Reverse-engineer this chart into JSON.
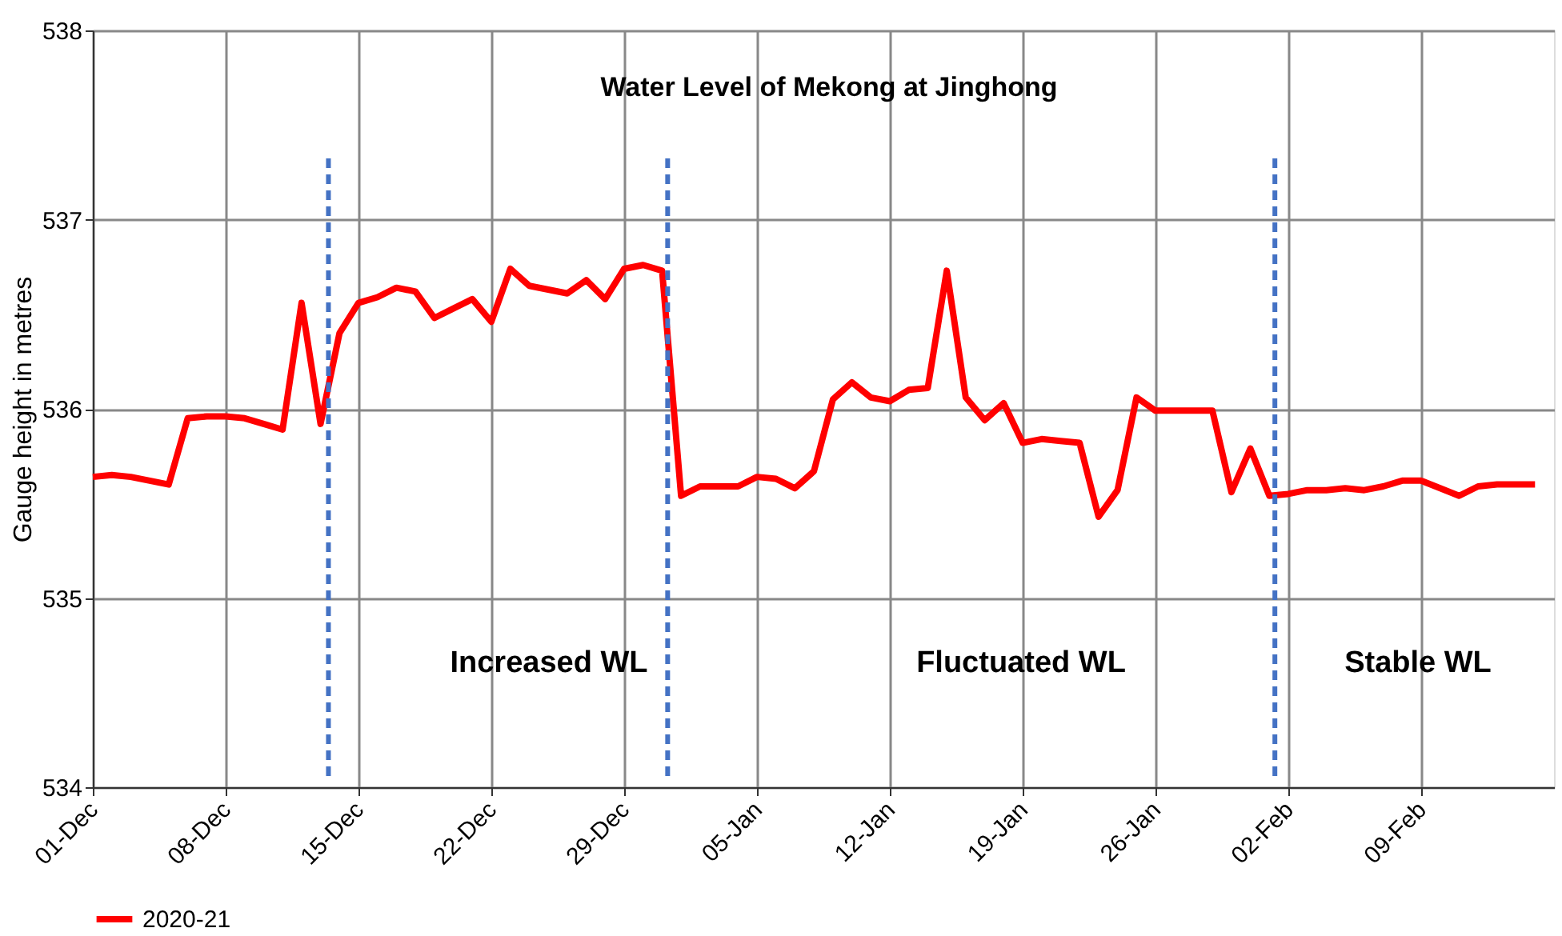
{
  "chart_data": {
    "type": "line",
    "title": "Water Level of Mekong at Jinghong",
    "ylabel": "Gauge height in metres",
    "x": [
      "2020-12-01",
      "2020-12-02",
      "2020-12-03",
      "2020-12-04",
      "2020-12-05",
      "2020-12-06",
      "2020-12-07",
      "2020-12-08",
      "2020-12-09",
      "2020-12-10",
      "2020-12-11",
      "2020-12-12",
      "2020-12-13",
      "2020-12-14",
      "2020-12-15",
      "2020-12-16",
      "2020-12-17",
      "2020-12-18",
      "2020-12-19",
      "2020-12-20",
      "2020-12-21",
      "2020-12-22",
      "2020-12-23",
      "2020-12-24",
      "2020-12-25",
      "2020-12-26",
      "2020-12-27",
      "2020-12-28",
      "2020-12-29",
      "2020-12-30",
      "2020-12-31",
      "2021-01-01",
      "2021-01-02",
      "2021-01-03",
      "2021-01-04",
      "2021-01-05",
      "2021-01-06",
      "2021-01-07",
      "2021-01-08",
      "2021-01-09",
      "2021-01-10",
      "2021-01-11",
      "2021-01-12",
      "2021-01-13",
      "2021-01-14",
      "2021-01-15",
      "2021-01-16",
      "2021-01-17",
      "2021-01-18",
      "2021-01-19",
      "2021-01-20",
      "2021-01-21",
      "2021-01-22",
      "2021-01-23",
      "2021-01-24",
      "2021-01-25",
      "2021-01-26",
      "2021-01-27",
      "2021-01-28",
      "2021-01-29",
      "2021-01-30",
      "2021-01-31",
      "2021-02-01",
      "2021-02-02",
      "2021-02-03",
      "2021-02-04",
      "2021-02-05",
      "2021-02-06",
      "2021-02-07",
      "2021-02-08",
      "2021-02-09",
      "2021-02-10",
      "2021-02-11",
      "2021-02-12",
      "2021-02-13",
      "2021-02-14",
      "2021-02-15"
    ],
    "series": [
      {
        "name": "2020-21",
        "color": "#ff0000",
        "values": [
          535.64,
          535.65,
          535.64,
          535.62,
          535.6,
          535.95,
          535.96,
          535.96,
          535.95,
          535.92,
          535.89,
          536.56,
          535.92,
          536.4,
          536.56,
          536.59,
          536.64,
          536.62,
          536.48,
          536.53,
          536.58,
          536.46,
          536.74,
          536.65,
          536.63,
          536.61,
          536.68,
          536.58,
          536.74,
          536.76,
          536.73,
          535.54,
          535.59,
          535.59,
          535.59,
          535.64,
          535.63,
          535.58,
          535.67,
          536.05,
          536.14,
          536.06,
          536.04,
          536.1,
          536.11,
          536.73,
          536.06,
          535.94,
          536.03,
          535.82,
          535.84,
          535.83,
          535.82,
          535.43,
          535.57,
          536.06,
          535.99,
          535.99,
          535.99,
          535.99,
          535.56,
          535.79,
          535.54,
          535.55,
          535.57,
          535.57,
          535.58,
          535.57,
          535.59,
          535.62,
          535.62,
          535.58,
          535.54,
          535.59,
          535.6,
          535.6,
          535.6
        ]
      }
    ],
    "xlim": [
      "2020-12-01",
      "2021-02-16"
    ],
    "xticks": [
      {
        "value": "2020-12-01",
        "label": "01-Dec"
      },
      {
        "value": "2020-12-08",
        "label": "08-Dec"
      },
      {
        "value": "2020-12-15",
        "label": "15-Dec"
      },
      {
        "value": "2020-12-22",
        "label": "22-Dec"
      },
      {
        "value": "2020-12-29",
        "label": "29-Dec"
      },
      {
        "value": "2021-01-05",
        "label": "05-Jan"
      },
      {
        "value": "2021-01-12",
        "label": "12-Jan"
      },
      {
        "value": "2021-01-19",
        "label": "19-Jan"
      },
      {
        "value": "2021-01-26",
        "label": "26-Jan"
      },
      {
        "value": "2021-02-02",
        "label": "02-Feb"
      },
      {
        "value": "2021-02-09",
        "label": "09-Feb"
      }
    ],
    "ylim": [
      534,
      538
    ],
    "yticks": [
      534,
      535,
      536,
      537,
      538
    ],
    "ref_lines": [
      {
        "axis": "x",
        "value": "2020-12-13T10:00",
        "color": "#4472c4",
        "line_style": "dashed"
      },
      {
        "axis": "x",
        "value": "2020-12-31T07:00",
        "color": "#4472c4",
        "line_style": "dashed"
      },
      {
        "axis": "x",
        "value": "2021-02-01T07:00",
        "color": "#4472c4",
        "line_style": "dashed"
      }
    ],
    "annotations": [
      "Increased WL",
      "Fluctuated WL",
      "Stable WL"
    ],
    "grid": true,
    "legend": "bottom",
    "line_style": "solid",
    "marker": "none"
  }
}
